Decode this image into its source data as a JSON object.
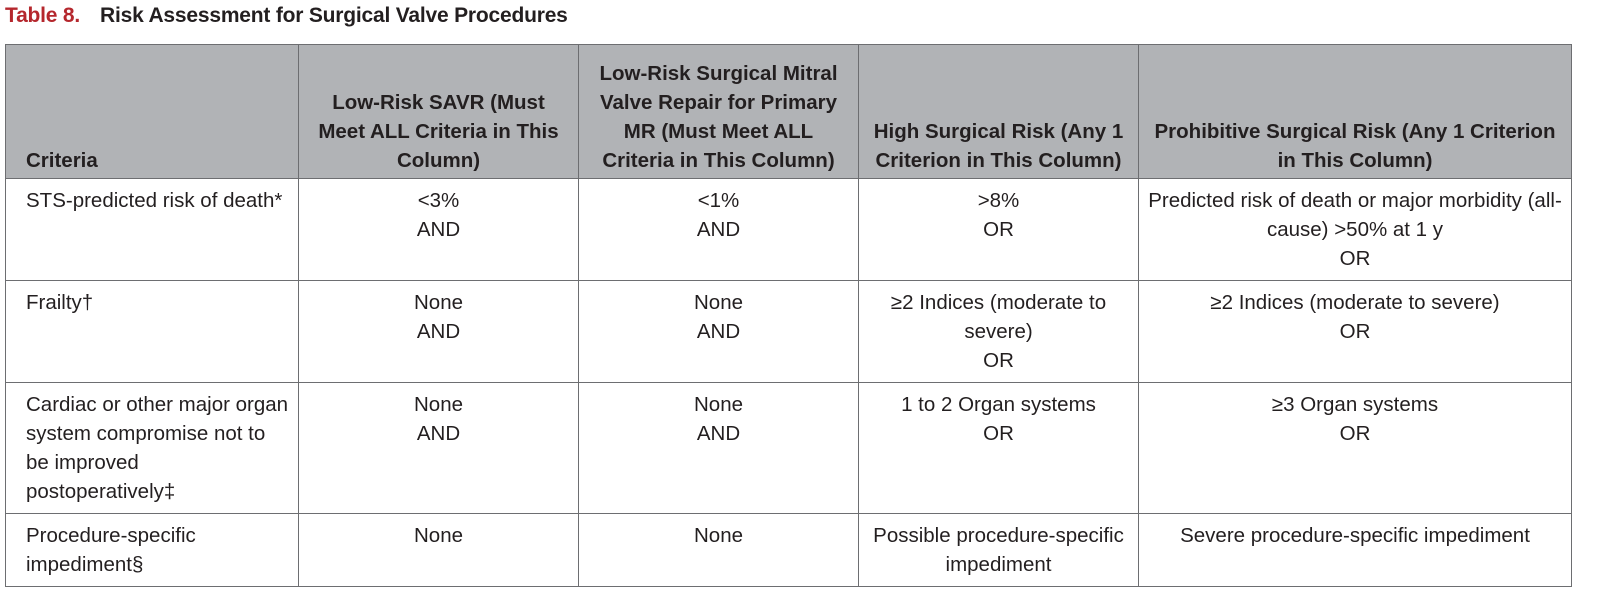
{
  "caption": {
    "number": "Table 8.",
    "title": "Risk Assessment for Surgical Valve Procedures"
  },
  "headers": [
    "Criteria",
    "Low-Risk SAVR (Must Meet ALL Criteria in This Column)",
    "Low-Risk Surgical Mitral Valve Repair for Primary MR (Must Meet ALL Criteria in This Column)",
    "High Surgical Risk (Any 1 Criterion in This Column)",
    "Prohibitive Surgical Risk (Any 1 Criterion in This Column)"
  ],
  "rows": [
    {
      "criteria": "STS-predicted risk of death*",
      "cells": [
        [
          "<3%",
          "AND"
        ],
        [
          "<1%",
          "AND"
        ],
        [
          ">8%",
          "OR"
        ],
        [
          "Predicted risk of death or major morbidity (all-cause) >50% at 1 y",
          "OR"
        ]
      ]
    },
    {
      "criteria": "Frailty†",
      "cells": [
        [
          "None",
          "AND"
        ],
        [
          "None",
          "AND"
        ],
        [
          "≥2 Indices (moderate to severe)",
          "OR"
        ],
        [
          "≥2 Indices (moderate to severe)",
          "OR"
        ]
      ]
    },
    {
      "criteria": "Cardiac or other major organ system compromise not to be improved postoperatively‡",
      "cells": [
        [
          "None",
          "AND"
        ],
        [
          "None",
          "AND"
        ],
        [
          "1 to 2 Organ systems",
          "OR"
        ],
        [
          "≥3 Organ systems",
          "OR"
        ]
      ]
    },
    {
      "criteria": "Procedure-specific impediment§",
      "cells": [
        [
          "None"
        ],
        [
          "None"
        ],
        [
          "Possible procedure-specific impediment"
        ],
        [
          "Severe procedure-specific impediment"
        ]
      ]
    }
  ]
}
